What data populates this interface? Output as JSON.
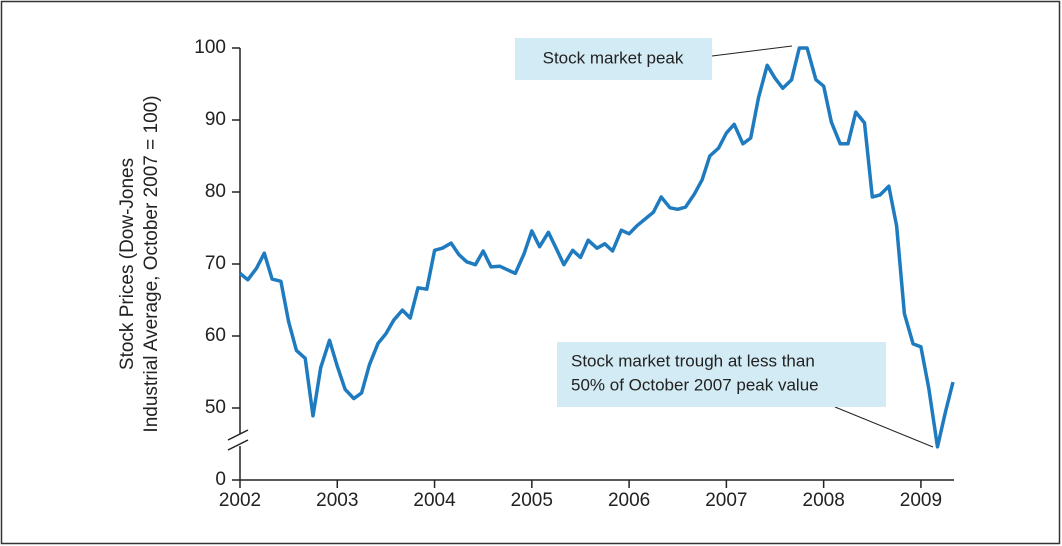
{
  "chart_data": {
    "type": "line",
    "y_label": [
      "Stock Prices (Dow-Jones",
      "Industrial Average, October 2007 = 100)"
    ],
    "annotations": [
      {
        "lines": [
          "Stock market peak"
        ]
      },
      {
        "lines": [
          "Stock market trough at less than",
          "50% of October 2007 peak value"
        ]
      }
    ],
    "x": [
      2002,
      2002.08,
      2002.17,
      2002.25,
      2002.33,
      2002.42,
      2002.5,
      2002.58,
      2002.67,
      2002.75,
      2002.83,
      2002.92,
      2003,
      2003.08,
      2003.17,
      2003.25,
      2003.33,
      2003.42,
      2003.5,
      2003.58,
      2003.67,
      2003.75,
      2003.83,
      2003.92,
      2004,
      2004.08,
      2004.17,
      2004.25,
      2004.33,
      2004.42,
      2004.5,
      2004.58,
      2004.67,
      2004.75,
      2004.83,
      2004.92,
      2005,
      2005.08,
      2005.17,
      2005.25,
      2005.33,
      2005.42,
      2005.5,
      2005.58,
      2005.67,
      2005.75,
      2005.83,
      2005.92,
      2006,
      2006.08,
      2006.17,
      2006.25,
      2006.33,
      2006.42,
      2006.5,
      2006.58,
      2006.67,
      2006.75,
      2006.83,
      2006.92,
      2007,
      2007.08,
      2007.17,
      2007.25,
      2007.33,
      2007.42,
      2007.5,
      2007.58,
      2007.67,
      2007.75,
      2007.83,
      2007.92,
      2008,
      2008.08,
      2008.17,
      2008.25,
      2008.33,
      2008.42,
      2008.5,
      2008.58,
      2008.67,
      2008.75,
      2008.83,
      2008.92,
      2009,
      2009.08,
      2009.17,
      2009.25,
      2009.33
    ],
    "series": [
      {
        "name": "Stock prices",
        "color": "#1f7bbf",
        "values": [
          68.7,
          67.8,
          69.4,
          71.5,
          67.9,
          67.6,
          62.0,
          58.0,
          56.9,
          48.9,
          55.6,
          59.4,
          55.8,
          52.6,
          51.3,
          52.1,
          56.0,
          59.0,
          60.3,
          62.2,
          63.6,
          62.5,
          66.7,
          66.5,
          71.9,
          72.2,
          72.9,
          71.3,
          70.3,
          69.9,
          71.8,
          69.6,
          69.7,
          69.2,
          68.7,
          71.4,
          74.6,
          72.4,
          74.4,
          72.2,
          69.9,
          71.9,
          70.9,
          73.3,
          72.2,
          72.8,
          71.8,
          74.7,
          74.2,
          75.3,
          76.3,
          77.2,
          79.3,
          77.8,
          77.6,
          77.9,
          79.7,
          81.7,
          85.0,
          86.1,
          88.2,
          89.4,
          86.7,
          87.5,
          93.1,
          97.6,
          95.8,
          94.4,
          95.6,
          100,
          100,
          95.6,
          94.7,
          89.7,
          86.7,
          86.7,
          91.1,
          89.6,
          79.3,
          79.6,
          80.8,
          75.3,
          63.1,
          58.9,
          58.5,
          52.8,
          44.6,
          49.3,
          53.6
        ]
      }
    ],
    "xlim": [
      2002,
      2009.34
    ],
    "xticks": [
      2002,
      2003,
      2004,
      2005,
      2006,
      2007,
      2008,
      2009
    ],
    "ylim": [
      0,
      100
    ],
    "ybreak": [
      0,
      40
    ],
    "yticks": [
      0,
      50,
      60,
      70,
      80,
      90,
      100
    ]
  }
}
